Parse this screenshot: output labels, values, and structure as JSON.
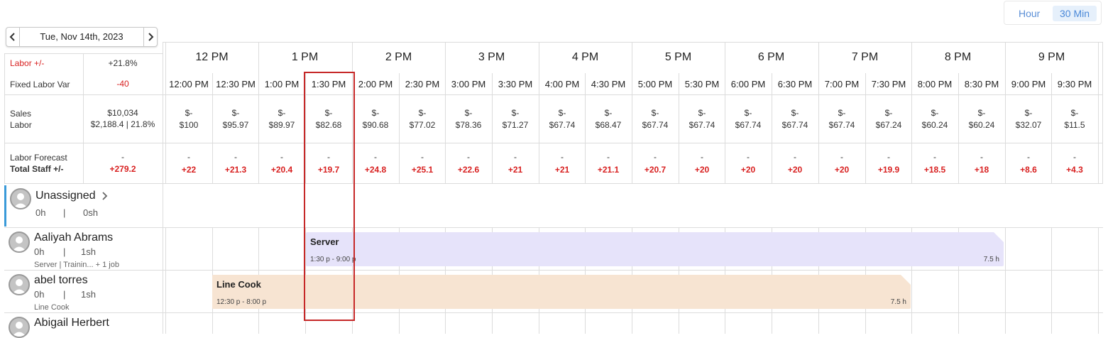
{
  "view_toggle": {
    "hour": "Hour",
    "thirty_min": "30 Min",
    "active": "30 Min"
  },
  "date_nav": {
    "date": "Tue, Nov 14th, 2023",
    "prev": "‹",
    "next": "›"
  },
  "summary": {
    "labor_var_label": "Labor +/-",
    "labor_var_value": "+21.8%",
    "fixed_labor_label": "Fixed Labor Var",
    "fixed_labor_value": "-40",
    "sales_label": "Sales",
    "labor_label": "Labor",
    "sales_value": "$10,034",
    "labor_value": "$2,188.4 | 21.8%",
    "forecast_label": "Labor Forecast",
    "total_staff_label": "Total Staff +/-",
    "forecast_value": "-",
    "total_staff_value": "+279.2"
  },
  "hours": [
    "12 PM",
    "1 PM",
    "2 PM",
    "3 PM",
    "4 PM",
    "5 PM",
    "6 PM",
    "7 PM",
    "8 PM",
    "9 PM"
  ],
  "half_hours": [
    "12:00 PM",
    "12:30 PM",
    "1:00 PM",
    "1:30 PM",
    "2:00 PM",
    "2:30 PM",
    "3:00 PM",
    "3:30 PM",
    "4:00 PM",
    "4:30 PM",
    "5:00 PM",
    "5:30 PM",
    "6:00 PM",
    "6:30 PM",
    "7:00 PM",
    "7:30 PM",
    "8:00 PM",
    "8:30 PM",
    "9:00 PM",
    "9:30 PM"
  ],
  "sales_cells": [
    "$-",
    "$-",
    "$-",
    "$-",
    "$-",
    "$-",
    "$-",
    "$-",
    "$-",
    "$-",
    "$-",
    "$-",
    "$-",
    "$-",
    "$-",
    "$-",
    "$-",
    "$-",
    "$-",
    "$-"
  ],
  "labor_cells": [
    "$100",
    "$95.97",
    "$89.97",
    "$82.68",
    "$90.68",
    "$77.02",
    "$78.36",
    "$71.27",
    "$67.74",
    "$68.47",
    "$67.74",
    "$67.74",
    "$67.74",
    "$67.74",
    "$67.74",
    "$67.24",
    "$60.24",
    "$60.24",
    "$32.07",
    "$11.5"
  ],
  "forecast_cells": [
    "-",
    "-",
    "-",
    "-",
    "-",
    "-",
    "-",
    "-",
    "-",
    "-",
    "-",
    "-",
    "-",
    "-",
    "-",
    "-",
    "-",
    "-",
    "-",
    "-"
  ],
  "staff_cells": [
    "+22",
    "+21.3",
    "+20.4",
    "+19.7",
    "+24.8",
    "+25.1",
    "+22.6",
    "+21",
    "+21",
    "+21.1",
    "+20.7",
    "+20",
    "+20",
    "+20",
    "+20",
    "+19.9",
    "+18.5",
    "+18",
    "+8.6",
    "+4.3"
  ],
  "employees": [
    {
      "name": "Unassigned",
      "hours": "0h",
      "sep": "|",
      "scheduled": "0sh",
      "sub": "",
      "chevron": "›"
    },
    {
      "name": "Aaliyah Abrams",
      "hours": "0h",
      "sep": "|",
      "scheduled": "1sh",
      "sub": "Server | Trainin... + 1 job"
    },
    {
      "name": "abel torres",
      "hours": "0h",
      "sep": "|",
      "scheduled": "1sh",
      "sub": "Line Cook"
    },
    {
      "name": "Abigail Herbert",
      "hours": "",
      "sep": "",
      "scheduled": "",
      "sub": ""
    }
  ],
  "shifts": [
    {
      "role": "Server",
      "time": "1:30 p - 9:00 p",
      "duration": "7.5 h",
      "color": "#e6e3fa"
    },
    {
      "role": "Line Cook",
      "time": "12:30 p - 8:00 p",
      "duration": "7.5 h",
      "color": "#f7e4d2"
    }
  ],
  "colors": {
    "accent_blue": "#3a9ad9",
    "negative_red": "#d82020",
    "highlight": "#c62828"
  }
}
